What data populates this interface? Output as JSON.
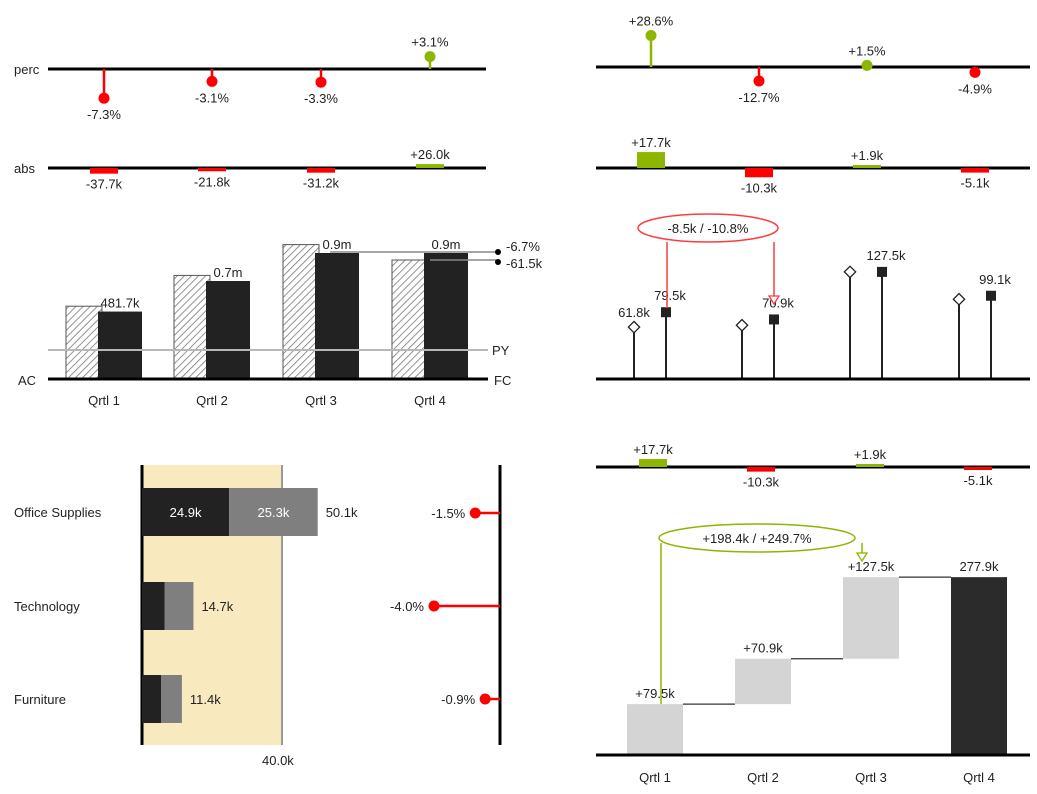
{
  "colors": {
    "positive": "#8db600",
    "negative": "#ff0000",
    "ac": "#222222",
    "py_bar": "#d8d8d8",
    "waterfall_delta": "#d4d4d4",
    "waterfall_total": "#2b2b2b",
    "highlight_band": "#f8e9bf",
    "stack_mid": "#7f7f7f"
  },
  "chart_data": [
    {
      "id": "tl_perc",
      "type": "lollipop-variance",
      "row_label": "perc",
      "values": [
        -7.3,
        -3.1,
        -3.3,
        3.1
      ],
      "labels": [
        "-7.3%",
        "-3.1%",
        "-3.3%",
        "+3.1%"
      ]
    },
    {
      "id": "tl_abs",
      "type": "bar-variance",
      "row_label": "abs",
      "values": [
        -37.7,
        -21.8,
        -31.2,
        26.0
      ],
      "labels": [
        "-37.7k",
        "-21.8k",
        "-31.2k",
        "+26.0k"
      ]
    },
    {
      "id": "tl_main",
      "type": "bar",
      "categories": [
        "Qrtl 1",
        "Qrtl 2",
        "Qrtl 3",
        "Qrtl 4"
      ],
      "series": [
        {
          "name": "AC",
          "values": [
            481.7,
            700,
            900,
            900
          ]
        }
      ],
      "py_values": [
        520,
        740,
        960,
        850
      ],
      "value_labels": [
        "481.7k",
        "0.7m",
        "0.9m",
        "0.9m"
      ],
      "py_line_value": 150,
      "py_label": "PY",
      "ac_label": "AC",
      "fc_label": "FC",
      "variance_labels": [
        "-6.7%",
        "-61.5k"
      ]
    },
    {
      "id": "tr_perc",
      "type": "lollipop-variance",
      "values": [
        28.6,
        -12.7,
        1.5,
        -4.9
      ],
      "labels": [
        "+28.6%",
        "-12.7%",
        "+1.5%",
        "-4.9%"
      ]
    },
    {
      "id": "tr_abs",
      "type": "bar-variance",
      "values": [
        17.7,
        -10.3,
        1.9,
        -5.1
      ],
      "labels": [
        "+17.7k",
        "-10.3k",
        "+1.9k",
        "-5.1k"
      ]
    },
    {
      "id": "tr_main",
      "type": "pin",
      "series": [
        {
          "values": [
            61.8,
            64,
            127.5,
            95
          ]
        },
        {
          "values": [
            79.5,
            70.9,
            127.5,
            99.1
          ]
        }
      ],
      "value_labels_py": [
        "61.8k",
        "",
        "",
        ""
      ],
      "value_labels_ac": [
        "79.5k",
        "70.9k",
        "127.5k",
        "99.1k"
      ],
      "annotation": "-8.5k / -10.8%"
    },
    {
      "id": "bl_bars",
      "type": "bar",
      "categories": [
        "Office Supplies",
        "Technology",
        "Furniture"
      ],
      "series": [
        {
          "values": [
            24.9,
            6.5,
            5.5
          ]
        },
        {
          "values": [
            25.3,
            8.2,
            5.9
          ]
        }
      ],
      "segment_labels": [
        "24.9k",
        "25.3k"
      ],
      "totals": [
        "50.1k",
        "14.7k",
        "11.4k"
      ],
      "threshold_label": "40.0k",
      "threshold": 40
    },
    {
      "id": "bl_var",
      "type": "lollipop-variance",
      "values": [
        -1.5,
        -4.0,
        -0.9
      ],
      "labels": [
        "-1.5%",
        "-4.0%",
        "-0.9%"
      ]
    },
    {
      "id": "br_abs",
      "type": "bar-variance",
      "values": [
        17.7,
        -10.3,
        1.9,
        -5.1
      ],
      "labels": [
        "+17.7k",
        "-10.3k",
        "+1.9k",
        "-5.1k"
      ]
    },
    {
      "id": "br_waterfall",
      "type": "waterfall",
      "categories": [
        "Qrtl 1",
        "Qrtl 2",
        "Qrtl 3",
        "Qrtl 4"
      ],
      "deltas": [
        79.5,
        70.9,
        127.5
      ],
      "total": 277.9,
      "labels": [
        "+79.5k",
        "+70.9k",
        "+127.5k",
        "277.9k"
      ],
      "annotation": "+198.4k / +249.7%"
    }
  ]
}
